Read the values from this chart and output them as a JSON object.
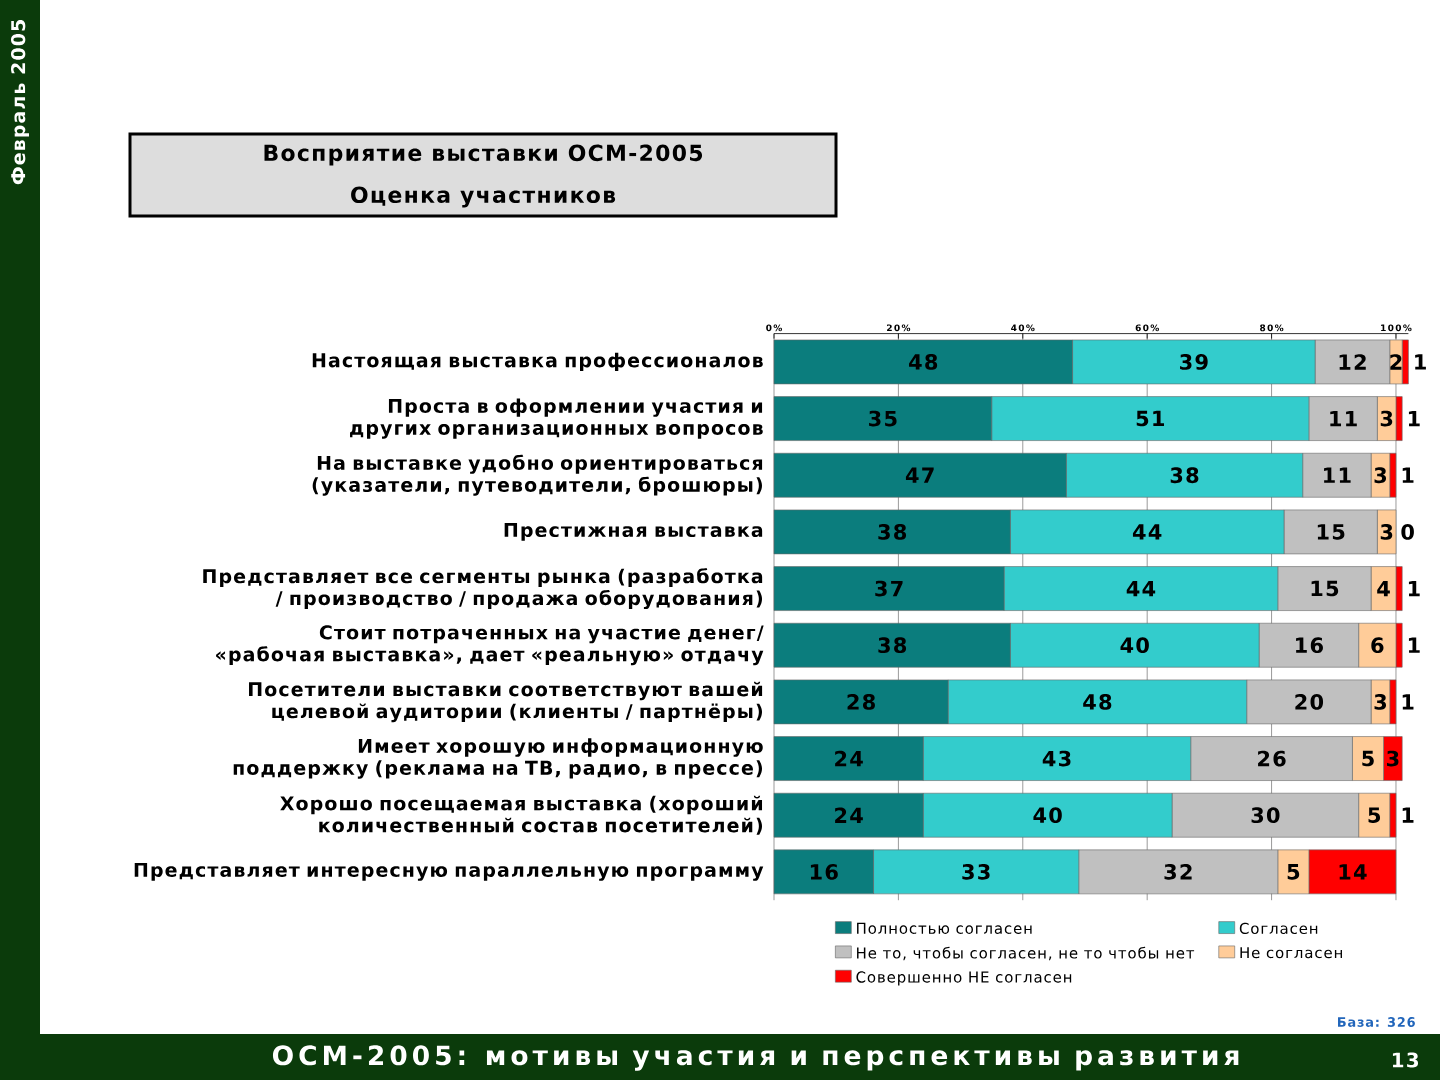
{
  "chart_data": {
    "type": "bar",
    "orientation": "horizontal",
    "stacked": true,
    "title": "Восприятие выставки ОСМ-2005",
    "subtitle": "Оценка участников",
    "categories": [
      "Настоящая выставка профессионалов",
      "Проста в оформлении участия и других организационных вопросов",
      "На выставке удобно ориентироваться (указатели, путеводители, брошюры)",
      "Престижная выставка",
      "Представляет все сегменты рынка (разработка / производство / продажа оборудования)",
      "Стоит потраченных на участие денег/ «рабочая выставка», дает «реальную» отдачу",
      "Посетители выставки соответствуют вашей целевой аудитории (клиенты / партнёры)",
      "Имеет хорошую информационную поддержку (реклама на ТВ, радио, в прессе)",
      "Хорошо посещаемая выставка (хороший количественный состав посетителей)",
      "Представляет интересную параллельную программу"
    ],
    "series": [
      {
        "name": "Полностью согласен",
        "color": "#0b7d7d",
        "values": [
          48,
          35,
          47,
          38,
          37,
          38,
          28,
          24,
          24,
          16
        ]
      },
      {
        "name": "Согласен",
        "color": "#33cccc",
        "values": [
          39,
          51,
          38,
          44,
          44,
          40,
          48,
          43,
          40,
          33
        ]
      },
      {
        "name": "Не то, чтобы согласен, не то чтобы нет",
        "color": "#c0c0c0",
        "values": [
          12,
          11,
          11,
          15,
          15,
          16,
          20,
          26,
          30,
          32
        ]
      },
      {
        "name": "Не согласен",
        "color": "#ffcc99",
        "values": [
          2,
          3,
          3,
          3,
          4,
          6,
          3,
          5,
          5,
          5
        ]
      },
      {
        "name": "Совершенно НЕ согласен",
        "color": "#ff0000",
        "values": [
          1,
          1,
          1,
          0,
          1,
          1,
          1,
          3,
          1,
          14
        ]
      }
    ],
    "xlim": [
      0,
      102
    ],
    "xticks": [
      {
        "value": 0,
        "label": "0%"
      },
      {
        "value": 20,
        "label": "20%"
      },
      {
        "value": 40,
        "label": "40%"
      },
      {
        "value": 60,
        "label": "60%"
      },
      {
        "value": 80,
        "label": "80%"
      },
      {
        "value": 100,
        "label": "100%"
      }
    ],
    "grid": "x",
    "legend": "bottom",
    "data_labels": true,
    "annotations": [
      "Февраль 2005",
      "ОСМ-2005: мотивы участия и перспективы развития",
      "База: 326",
      "13"
    ]
  }
}
